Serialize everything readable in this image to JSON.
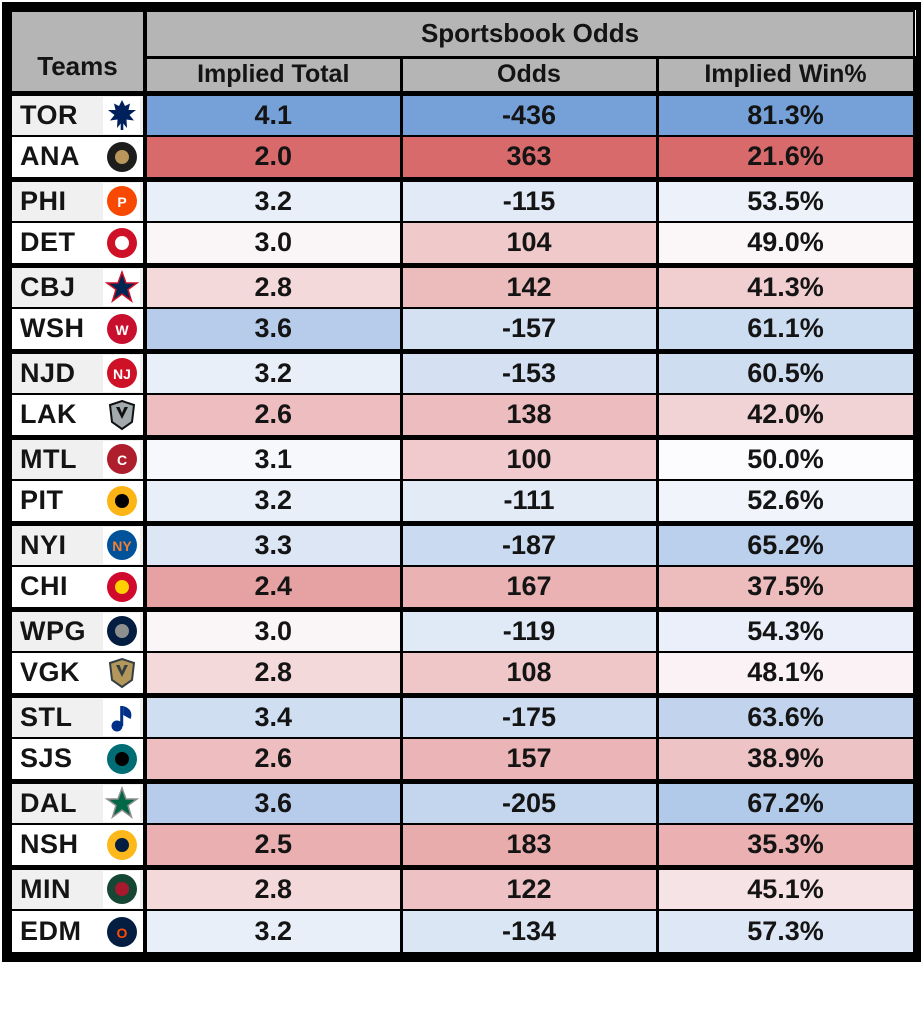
{
  "header": {
    "group_title": "Sportsbook Odds",
    "teams_label": "Teams",
    "columns": [
      "Implied Total",
      "Odds",
      "Implied Win%"
    ]
  },
  "colors": {
    "blue_max": "#76A1D8",
    "red_max": "#D96A6B",
    "neutral": "#FCFCFE",
    "header_bg": "#B5B5B5",
    "border": "#000000",
    "team_stripe": "#F0F0F0",
    "text": "#141414"
  },
  "scales": {
    "total": {
      "mid": 3.05,
      "blue_end": 4.1,
      "red_end": 2.0
    },
    "odds": {
      "mid": -36.5,
      "blue_end": -436,
      "red_end": 363
    },
    "win": {
      "mid": 50.0,
      "blue_end": 81.3,
      "red_end": 21.6
    }
  },
  "teams": [
    {
      "abbr": "TOR",
      "total": "4.1",
      "odds": "-436",
      "win": "81.3%",
      "logo": {
        "icon": "maple-leaf",
        "type": "leaf",
        "primary": "#00205B",
        "secondary": "#FFFFFF"
      }
    },
    {
      "abbr": "ANA",
      "total": "2.0",
      "odds": "363",
      "win": "21.6%",
      "logo": {
        "icon": "duck-mask",
        "type": "circle",
        "primary": "#1D1D1B",
        "secondary": "#B9975B"
      }
    },
    {
      "abbr": "PHI",
      "total": "3.2",
      "odds": "-115",
      "win": "53.5%",
      "logo": {
        "icon": "flyers-p",
        "type": "letter",
        "primary": "#F74902",
        "secondary": "#FFFFFF",
        "text": "P"
      }
    },
    {
      "abbr": "DET",
      "total": "3.0",
      "odds": "104",
      "win": "49.0%",
      "logo": {
        "icon": "winged-wheel",
        "type": "circle",
        "primary": "#CE1126",
        "secondary": "#FFFFFF"
      }
    },
    {
      "abbr": "CBJ",
      "total": "2.8",
      "odds": "142",
      "win": "41.3%",
      "logo": {
        "icon": "union-star",
        "type": "star",
        "primary": "#002654",
        "secondary": "#CE1126"
      }
    },
    {
      "abbr": "WSH",
      "total": "3.6",
      "odds": "-157",
      "win": "61.1%",
      "logo": {
        "icon": "capitals-eagle",
        "type": "letter",
        "primary": "#C8102E",
        "secondary": "#FFFFFF",
        "text": "W"
      }
    },
    {
      "abbr": "NJD",
      "total": "3.2",
      "odds": "-153",
      "win": "60.5%",
      "logo": {
        "icon": "devils-nj",
        "type": "letter",
        "primary": "#CE1126",
        "secondary": "#FFFFFF",
        "text": "NJ"
      }
    },
    {
      "abbr": "LAK",
      "total": "2.6",
      "odds": "138",
      "win": "42.0%",
      "logo": {
        "icon": "kings-crest",
        "type": "shield",
        "primary": "#A2AAAD",
        "secondary": "#111111"
      }
    },
    {
      "abbr": "MTL",
      "total": "3.1",
      "odds": "100",
      "win": "50.0%",
      "logo": {
        "icon": "canadiens-ch",
        "type": "letter",
        "primary": "#AF1E2D",
        "secondary": "#FFFFFF",
        "text": "C"
      }
    },
    {
      "abbr": "PIT",
      "total": "3.2",
      "odds": "-111",
      "win": "52.6%",
      "logo": {
        "icon": "skating-penguin",
        "type": "circle",
        "primary": "#FCB514",
        "secondary": "#000000"
      }
    },
    {
      "abbr": "NYI",
      "total": "3.3",
      "odds": "-187",
      "win": "65.2%",
      "logo": {
        "icon": "islanders-ny",
        "type": "letter",
        "primary": "#00539B",
        "secondary": "#F47D30",
        "text": "NY"
      }
    },
    {
      "abbr": "CHI",
      "total": "2.4",
      "odds": "167",
      "win": "37.5%",
      "logo": {
        "icon": "blackhawks-head",
        "type": "circle",
        "primary": "#CF0A2C",
        "secondary": "#FFD100"
      }
    },
    {
      "abbr": "WPG",
      "total": "3.0",
      "odds": "-119",
      "win": "54.3%",
      "logo": {
        "icon": "jets-roundel",
        "type": "circle",
        "primary": "#041E42",
        "secondary": "#8E9090"
      }
    },
    {
      "abbr": "VGK",
      "total": "2.8",
      "odds": "108",
      "win": "48.1%",
      "logo": {
        "icon": "knights-helmet",
        "type": "shield",
        "primary": "#B4975A",
        "secondary": "#333F42"
      }
    },
    {
      "abbr": "STL",
      "total": "3.4",
      "odds": "-175",
      "win": "63.6%",
      "logo": {
        "icon": "blue-note",
        "type": "note",
        "primary": "#002F87",
        "secondary": "#FCB514"
      }
    },
    {
      "abbr": "SJS",
      "total": "2.6",
      "odds": "157",
      "win": "38.9%",
      "logo": {
        "icon": "shark-fin",
        "type": "circle",
        "primary": "#006D75",
        "secondary": "#000000"
      }
    },
    {
      "abbr": "DAL",
      "total": "3.6",
      "odds": "-205",
      "win": "67.2%",
      "logo": {
        "icon": "stars-star",
        "type": "star",
        "primary": "#006847",
        "secondary": "#8F8F8C"
      }
    },
    {
      "abbr": "NSH",
      "total": "2.5",
      "odds": "183",
      "win": "35.3%",
      "logo": {
        "icon": "predators-sabertooth",
        "type": "circle",
        "primary": "#FFB81C",
        "secondary": "#041E42"
      }
    },
    {
      "abbr": "MIN",
      "total": "2.8",
      "odds": "122",
      "win": "45.1%",
      "logo": {
        "icon": "wild-animal",
        "type": "circle",
        "primary": "#154734",
        "secondary": "#A6192E"
      }
    },
    {
      "abbr": "EDM",
      "total": "3.2",
      "odds": "-134",
      "win": "57.3%",
      "logo": {
        "icon": "oilers-roundel",
        "type": "letter",
        "primary": "#041E42",
        "secondary": "#FF4C00",
        "text": "O"
      }
    }
  ],
  "chart_data": {
    "type": "table",
    "title": "Sportsbook Odds",
    "columns": [
      "Teams",
      "Implied Total",
      "Odds",
      "Implied Win%"
    ],
    "rows": [
      [
        "TOR",
        4.1,
        -436,
        81.3
      ],
      [
        "ANA",
        2.0,
        363,
        21.6
      ],
      [
        "PHI",
        3.2,
        -115,
        53.5
      ],
      [
        "DET",
        3.0,
        104,
        49.0
      ],
      [
        "CBJ",
        2.8,
        142,
        41.3
      ],
      [
        "WSH",
        3.6,
        -157,
        61.1
      ],
      [
        "NJD",
        3.2,
        -153,
        60.5
      ],
      [
        "LAK",
        2.6,
        138,
        42.0
      ],
      [
        "MTL",
        3.1,
        100,
        50.0
      ],
      [
        "PIT",
        3.2,
        -111,
        52.6
      ],
      [
        "NYI",
        3.3,
        -187,
        65.2
      ],
      [
        "CHI",
        2.4,
        167,
        37.5
      ],
      [
        "WPG",
        3.0,
        -119,
        54.3
      ],
      [
        "VGK",
        2.8,
        108,
        48.1
      ],
      [
        "STL",
        3.4,
        -175,
        63.6
      ],
      [
        "SJS",
        2.6,
        157,
        38.9
      ],
      [
        "DAL",
        3.6,
        -205,
        67.2
      ],
      [
        "NSH",
        2.5,
        183,
        35.3
      ],
      [
        "MIN",
        2.8,
        122,
        45.1
      ],
      [
        "EDM",
        3.2,
        -134,
        57.3
      ]
    ],
    "notes": "Rows are grouped in pairs per game; cell backgrounds use a red-white-blue diverging scale (blue = favorite/high, red = underdog/low)."
  }
}
